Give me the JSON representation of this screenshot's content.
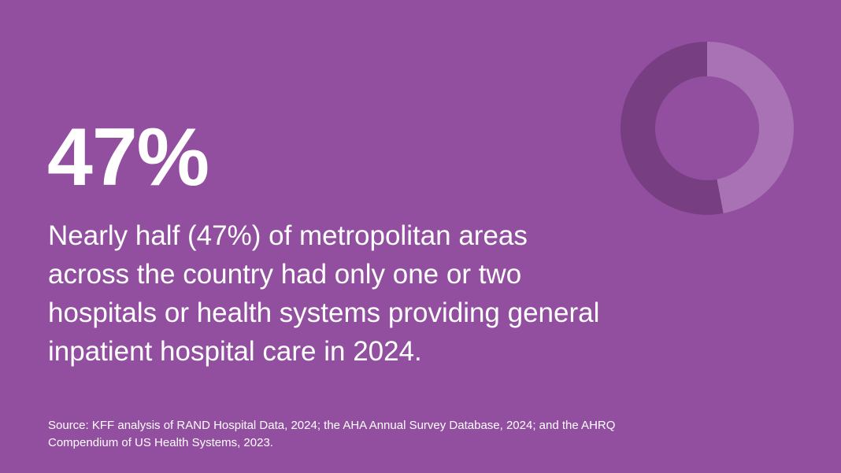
{
  "headline": "47%",
  "description": "Nearly half (47%) of metropolitan areas across the country had only one or two hospitals or health systems providing general inpatient hospital care in 2024.",
  "source": "Source: KFF analysis of RAND Hospital Data, 2024; the AHA Annual Survey Database, 2024; and the AHRQ Compendium of US Health Systems, 2023.",
  "colors": {
    "background": "#924f9f",
    "highlight": "#a872b5",
    "remainder": "#773f82"
  },
  "chart_data": {
    "type": "pie",
    "subtype": "donut",
    "values": [
      47,
      53
    ],
    "unit": "%",
    "colors": [
      "#a872b5",
      "#773f82"
    ]
  }
}
